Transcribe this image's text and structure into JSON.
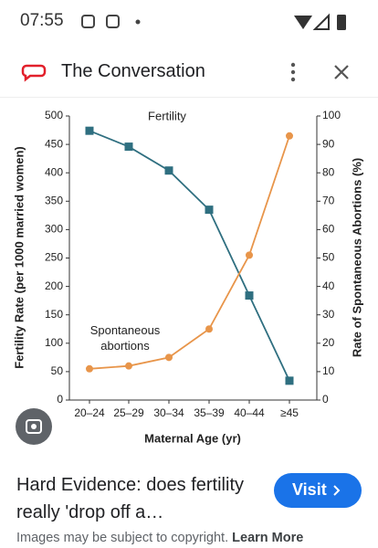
{
  "status_bar": {
    "time": "07:55"
  },
  "header": {
    "title": "The Conversation"
  },
  "chart_data": {
    "type": "line",
    "annotations": [
      "Fertility",
      "Spontaneous abortions"
    ],
    "x_label": "Maternal Age (yr)",
    "y_label": "Fertility Rate (per 1000 married women)",
    "y2_label": "Rate of Spontaneous Abortions (%)",
    "categories": [
      "20–24",
      "25–29",
      "30–34",
      "35–39",
      "40–44",
      "≥45"
    ],
    "series": [
      {
        "name": "Fertility",
        "color": "#2f6f80",
        "marker": "square",
        "values": [
          474,
          446,
          404,
          335,
          184,
          34
        ]
      },
      {
        "name": "Spontaneous abortions",
        "color": "#e8954a",
        "marker": "circle",
        "axis": "y2",
        "values": [
          11,
          12,
          15,
          25,
          51,
          93
        ]
      }
    ],
    "ylim": [
      0,
      500
    ],
    "yticks": [
      0,
      50,
      100,
      150,
      200,
      250,
      300,
      350,
      400,
      450,
      500
    ],
    "y2lim": [
      0,
      100
    ],
    "y2ticks": [
      0,
      10,
      20,
      30,
      40,
      50,
      60,
      70,
      80,
      90,
      100
    ],
    "grid": false
  },
  "result": {
    "title": "Hard Evidence: does fertility really 'drop off a…",
    "button": "Visit",
    "note": "Images may be subject to copyright.",
    "link": "Learn More"
  }
}
